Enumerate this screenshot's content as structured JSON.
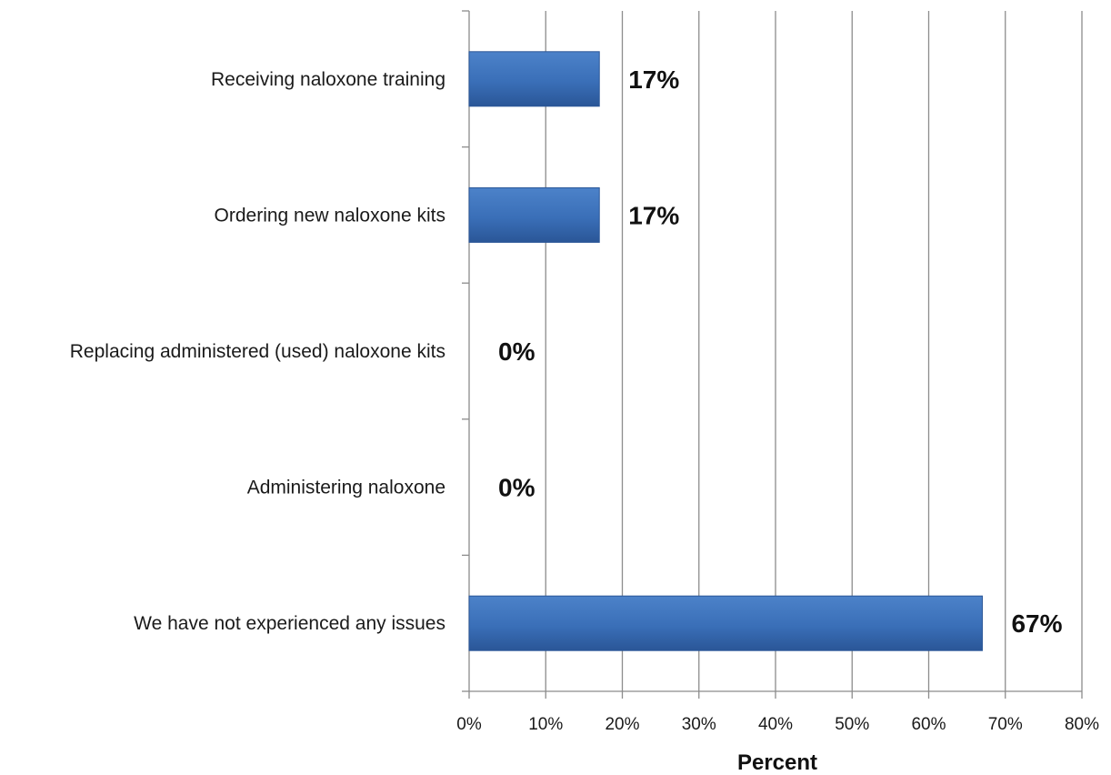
{
  "chart_data": {
    "type": "bar",
    "orientation": "horizontal",
    "categories": [
      "Receiving naloxone training",
      "Ordering new naloxone kits",
      "Replacing administered (used) naloxone kits",
      "Administering naloxone",
      "We have not experienced any issues"
    ],
    "values": [
      17,
      17,
      0,
      0,
      67
    ],
    "data_labels": [
      "17%",
      "17%",
      "0%",
      "0%",
      "67%"
    ],
    "x_ticks": [
      "0%",
      "10%",
      "20%",
      "30%",
      "40%",
      "50%",
      "60%",
      "70%",
      "80%"
    ],
    "xlim": [
      0,
      80
    ],
    "xlabel": "Percent",
    "ylabel": "",
    "title": "",
    "grid": "vertical",
    "legend": "none",
    "bar_color": "#3a6fb8",
    "bar_color_dark": "#2a5697"
  }
}
